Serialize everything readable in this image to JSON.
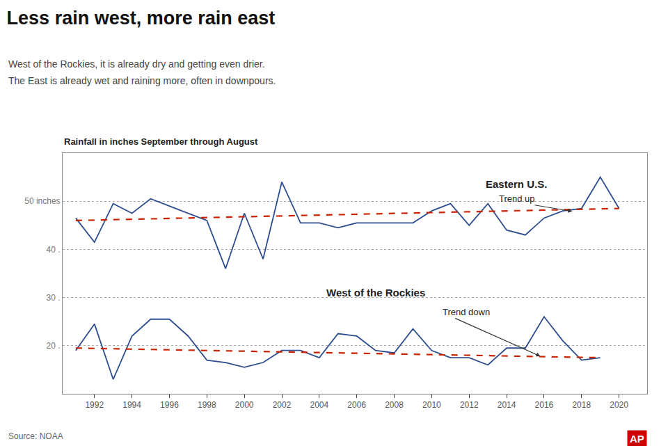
{
  "chart_data": {
    "type": "line",
    "title": "Less rain west, more rain east",
    "subtitle": [
      "West of the Rockies, it is already dry and getting even drier.",
      "The East is already wet and raining more, often in downpours."
    ],
    "ylabel": "Rainfall in inches September through August",
    "source": "Source: NOAA",
    "credit": "AP",
    "series": [
      {
        "name": "Eastern U.S.",
        "color": "#2d4d8e",
        "x": [
          1991,
          1992,
          1993,
          1994,
          1995,
          1996,
          1997,
          1998,
          1999,
          2000,
          2001,
          2002,
          2003,
          2004,
          2005,
          2006,
          2007,
          2008,
          2009,
          2010,
          2011,
          2012,
          2013,
          2014,
          2015,
          2016,
          2017,
          2018,
          2019,
          2020
        ],
        "values": [
          46.5,
          41.5,
          49.5,
          47.5,
          50.5,
          49.0,
          47.5,
          46.0,
          36.0,
          47.5,
          38.0,
          54.0,
          45.5,
          45.5,
          44.5,
          45.5,
          45.5,
          45.5,
          45.5,
          48.0,
          49.5,
          45.0,
          49.5,
          44.0,
          43.0,
          46.5,
          48.0,
          48.5,
          55.0,
          48.5
        ]
      },
      {
        "name": "West of the Rockies",
        "color": "#2d4d8e",
        "x": [
          1991,
          1992,
          1993,
          1994,
          1995,
          1996,
          1997,
          1998,
          1999,
          2000,
          2001,
          2002,
          2003,
          2004,
          2005,
          2006,
          2007,
          2008,
          2009,
          2010,
          2011,
          2012,
          2013,
          2014,
          2015,
          2016,
          2017,
          2018,
          2019
        ],
        "values": [
          19.0,
          24.5,
          13.0,
          22.0,
          25.5,
          25.5,
          22.0,
          17.0,
          16.5,
          15.5,
          16.5,
          19.0,
          19.0,
          17.5,
          22.5,
          22.0,
          19.0,
          18.5,
          23.5,
          19.0,
          17.5,
          17.5,
          16.0,
          19.5,
          19.5,
          26.0,
          21.0,
          17.0,
          17.5
        ]
      },
      {
        "color": "#cc2200",
        "line_style": "dash",
        "x": [
          1991,
          2020
        ],
        "values": [
          46.0,
          48.5
        ]
      },
      {
        "color": "#cc2200",
        "line_style": "dash",
        "x": [
          1991,
          2019
        ],
        "values": [
          19.5,
          17.5
        ]
      }
    ],
    "annotations": [
      {
        "text": "Eastern U.S.",
        "x": 2012.8,
        "y": 53.5
      },
      {
        "text": "Trend up",
        "x": 2013.5,
        "y": 50.5,
        "arrow_x": 2017.5,
        "arrow_y": 47.9
      },
      {
        "text": "West of the Rockies",
        "x": 2007.0,
        "y": 31.0
      },
      {
        "text": "Trend down",
        "x": 2010.5,
        "y": 27.0,
        "arrow_x": 2015.8,
        "arrow_y": 17.8
      }
    ],
    "xlim": [
      1990.3,
      2021.5
    ],
    "xticks": [
      1992,
      1994,
      1996,
      1998,
      2000,
      2002,
      2004,
      2006,
      2008,
      2010,
      2012,
      2014,
      2016,
      2018,
      2020
    ],
    "ylim": [
      10,
      60
    ],
    "yticks": [
      {
        "value": 20,
        "label": "20 ."
      },
      {
        "value": 30,
        "label": "30 ."
      },
      {
        "value": 40,
        "label": "40 ."
      },
      {
        "value": 50,
        "label": "50 inches"
      }
    ],
    "grid": "y"
  }
}
